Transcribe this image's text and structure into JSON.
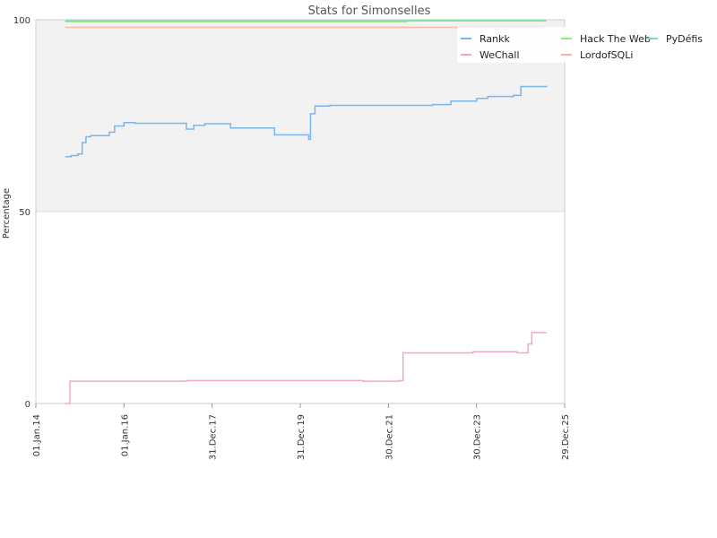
{
  "chart_data": {
    "type": "line",
    "title": "Stats for Simonselles",
    "xlabel": "",
    "ylabel": "Percentage",
    "ylim": [
      0,
      100
    ],
    "yticks": [
      0,
      50,
      100
    ],
    "xlim": [
      "2014-01-01",
      "2025-12-29"
    ],
    "xticks": [
      {
        "date": "2014-01-01",
        "label": "01.Jan.14"
      },
      {
        "date": "2016-01-01",
        "label": "01.Jan.16"
      },
      {
        "date": "2017-12-31",
        "label": "31.Dec.17"
      },
      {
        "date": "2019-12-31",
        "label": "31.Dec.19"
      },
      {
        "date": "2021-12-30",
        "label": "30.Dec.21"
      },
      {
        "date": "2023-12-30",
        "label": "30.Dec.23"
      },
      {
        "date": "2025-12-29",
        "label": "29.Dec.25"
      }
    ],
    "band": {
      "from": 50,
      "to": 100,
      "color": "#f2f2f2"
    },
    "legend_position": "top-right",
    "series": [
      {
        "name": "Rankk",
        "color": "#7cb5ec",
        "points": [
          [
            "2014-09-01",
            64.3
          ],
          [
            "2014-10-20",
            64.6
          ],
          [
            "2014-12-15",
            65.0
          ],
          [
            "2015-01-20",
            68.0
          ],
          [
            "2015-02-20",
            69.5
          ],
          [
            "2015-04-01",
            69.8
          ],
          [
            "2015-09-01",
            70.7
          ],
          [
            "2015-10-15",
            72.3
          ],
          [
            "2016-01-01",
            73.2
          ],
          [
            "2016-04-01",
            73.0
          ],
          [
            "2017-06-01",
            71.5
          ],
          [
            "2017-08-01",
            72.5
          ],
          [
            "2017-11-01",
            72.9
          ],
          [
            "2018-06-01",
            71.8
          ],
          [
            "2019-06-01",
            70.0
          ],
          [
            "2020-03-10",
            68.8
          ],
          [
            "2020-03-25",
            75.5
          ],
          [
            "2020-05-01",
            77.5
          ],
          [
            "2020-09-01",
            77.7
          ],
          [
            "2022-10-01",
            77.7
          ],
          [
            "2023-01-01",
            77.9
          ],
          [
            "2023-06-01",
            78.8
          ],
          [
            "2024-01-01",
            79.5
          ],
          [
            "2024-04-01",
            80.0
          ],
          [
            "2024-11-01",
            80.3
          ],
          [
            "2025-01-01",
            82.6
          ],
          [
            "2025-08-01",
            82.8
          ]
        ]
      },
      {
        "name": "WeChall",
        "color": "#f7a6c6",
        "points": [
          [
            "2014-09-01",
            0.0
          ],
          [
            "2014-10-10",
            5.8
          ],
          [
            "2016-06-01",
            5.8
          ],
          [
            "2017-06-01",
            6.0
          ],
          [
            "2019-06-01",
            6.0
          ],
          [
            "2021-06-01",
            5.8
          ],
          [
            "2022-04-01",
            6.0
          ],
          [
            "2022-05-01",
            13.2
          ],
          [
            "2023-06-01",
            13.2
          ],
          [
            "2023-12-01",
            13.5
          ],
          [
            "2024-12-01",
            13.2
          ],
          [
            "2025-03-01",
            15.5
          ],
          [
            "2025-04-01",
            18.5
          ],
          [
            "2025-08-01",
            18.5
          ]
        ]
      },
      {
        "name": "Hack The Web",
        "color": "#90ed7d",
        "points": [
          [
            "2014-09-01",
            99.5
          ],
          [
            "2022-05-01",
            99.5
          ],
          [
            "2022-06-01",
            99.9
          ],
          [
            "2025-08-01",
            99.9
          ]
        ]
      },
      {
        "name": "LordofSQLi",
        "color": "#f7b7a6",
        "points": [
          [
            "2014-09-01",
            98.0
          ],
          [
            "2025-07-01",
            98.0
          ]
        ]
      },
      {
        "name": "PyDéfis",
        "color": "#7cdbc8",
        "points": [
          [
            "2014-09-01",
            99.7
          ],
          [
            "2025-08-01",
            99.7
          ]
        ]
      }
    ]
  }
}
